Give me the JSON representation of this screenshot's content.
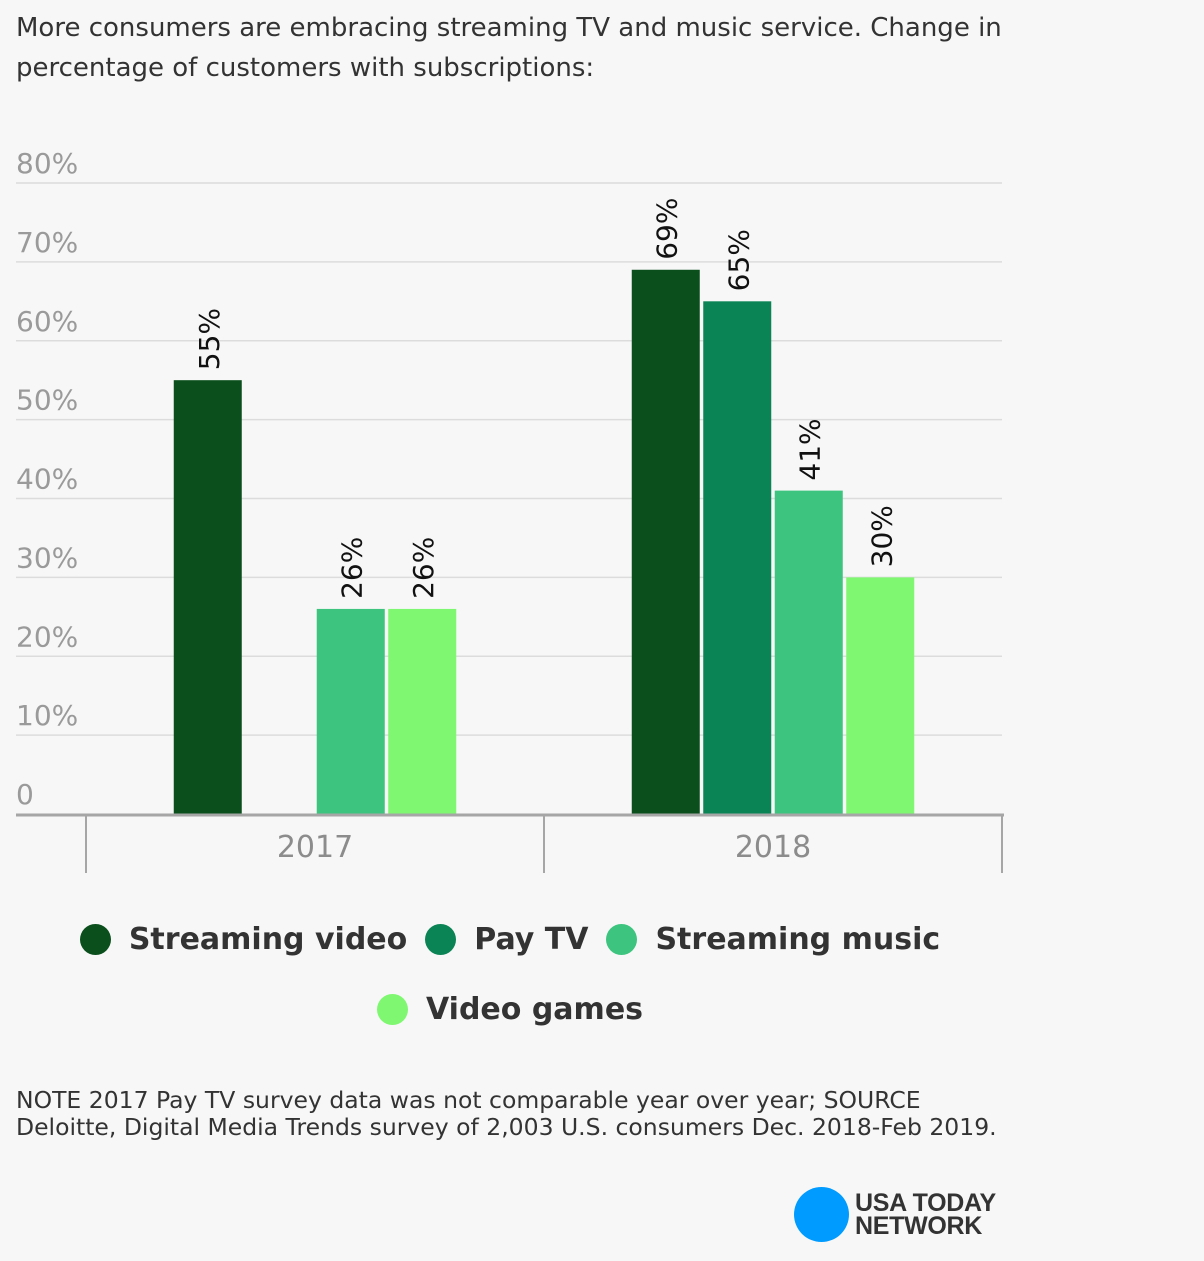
{
  "subtitle": "More consumers are embracing streaming TV and music service. Change in percentage of customers with subscriptions:",
  "chart_data": {
    "type": "bar",
    "categories": [
      "2017",
      "2018"
    ],
    "series": [
      {
        "name": "Streaming video",
        "color": "#0a4f1c",
        "values": [
          55,
          69
        ]
      },
      {
        "name": "Pay TV",
        "color": "#0b8455",
        "values": [
          null,
          65
        ]
      },
      {
        "name": "Streaming music",
        "color": "#3dc47e",
        "values": [
          26,
          41
        ]
      },
      {
        "name": "Video games",
        "color": "#7ff771",
        "values": [
          26,
          30
        ]
      }
    ],
    "data_labels": [
      [
        "55%",
        null,
        "26%",
        "26%"
      ],
      [
        "69%",
        "65%",
        "41%",
        "30%"
      ]
    ],
    "yticks": [
      "0",
      "10%",
      "20%",
      "30%",
      "40%",
      "50%",
      "60%",
      "70%",
      "80%"
    ],
    "ylim": [
      0,
      80
    ],
    "grid": true,
    "legend_position": "bottom"
  },
  "legend": [
    {
      "label": "Streaming video",
      "color": "#0a4f1c"
    },
    {
      "label": "Pay TV",
      "color": "#0b8455"
    },
    {
      "label": "Streaming music",
      "color": "#3dc47e"
    },
    {
      "label": "Video games",
      "color": "#7ff771"
    }
  ],
  "note": "NOTE 2017 Pay TV survey data was not comparable year over year; SOURCE Deloitte, Digital Media Trends survey of 2,003 U.S. consumers Dec. 2018-Feb 2019.",
  "logo": {
    "line1": "USA TODAY",
    "line2": "NETWORK",
    "color": "#009bff"
  }
}
